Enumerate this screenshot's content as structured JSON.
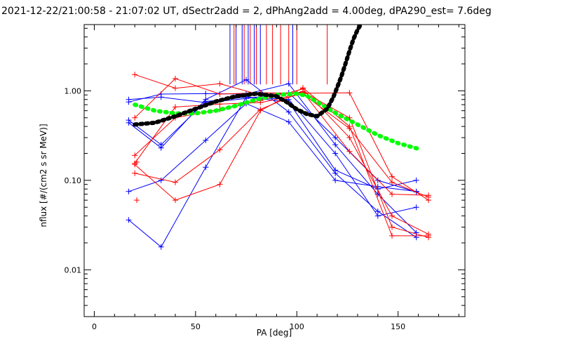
{
  "chart_data": {
    "type": "line",
    "title": "2021-12-22/21:00:58 - 21:07:02 UT, dSectr2add = 2, dPhAng2add = 4.00deg, dPA290_est=   7.6deg",
    "xlabel": "PA [deg]",
    "ylabel": "nflux [#/(cm2 s sr MeV)]",
    "xlim": [
      -5,
      183
    ],
    "ylim": [
      0.003,
      5.5
    ],
    "yscale": "log",
    "x_ticks": [
      0,
      50,
      100,
      150
    ],
    "x_tick_labels": [
      "0",
      "50",
      "100",
      "150"
    ],
    "y_ticks": [
      0.01,
      0.1,
      1.0
    ],
    "y_tick_labels": [
      "0.01",
      "0.10",
      "1.00"
    ],
    "grid": false,
    "colors": {
      "blue": "#0000ff",
      "red": "#ff0000",
      "green": "#00ff00",
      "black": "#000000"
    },
    "series": [
      {
        "color": "blue",
        "x": [
          17,
          33,
          55,
          75,
          96,
          119,
          140,
          159
        ],
        "y": [
          0.036,
          0.018,
          0.14,
          0.85,
          0.75,
          0.13,
          0.08,
          0.1
        ]
      },
      {
        "color": "blue",
        "x": [
          17,
          33,
          55,
          75,
          96,
          119,
          140,
          159
        ],
        "y": [
          0.075,
          0.1,
          0.28,
          0.72,
          0.45,
          0.1,
          0.085,
          0.075
        ]
      },
      {
        "color": "blue",
        "x": [
          17,
          33,
          55,
          75,
          96,
          119,
          140,
          159
        ],
        "y": [
          0.44,
          0.23,
          0.8,
          1.33,
          0.58,
          0.12,
          0.045,
          0.023
        ]
      },
      {
        "color": "blue",
        "x": [
          17,
          33,
          55,
          75,
          96,
          119,
          140,
          159
        ],
        "y": [
          0.47,
          0.25,
          0.76,
          0.85,
          0.8,
          0.2,
          0.04,
          0.05
        ]
      },
      {
        "color": "blue",
        "x": [
          17,
          33,
          55,
          75,
          96,
          119,
          140,
          159
        ],
        "y": [
          0.75,
          0.92,
          0.93,
          0.92,
          1.2,
          0.25,
          0.07,
          0.026
        ]
      },
      {
        "color": "blue",
        "x": [
          17,
          33,
          55,
          75,
          96,
          119,
          140,
          159
        ],
        "y": [
          0.8,
          0.85,
          0.74,
          0.82,
          0.95,
          0.3,
          0.1,
          0.074
        ]
      },
      {
        "color": "red",
        "x": [
          20,
          40,
          62,
          82,
          103,
          126,
          147,
          165
        ],
        "y": [
          0.15,
          0.06,
          0.09,
          0.6,
          1.08,
          0.4,
          0.024,
          0.024
        ]
      },
      {
        "color": "red",
        "x": [
          20,
          40,
          62,
          82,
          103,
          126,
          147,
          165
        ],
        "y": [
          0.12,
          0.095,
          0.22,
          0.62,
          0.98,
          0.5,
          0.03,
          0.023
        ]
      },
      {
        "color": "red",
        "x": [
          20,
          40,
          62,
          82,
          103,
          126,
          147,
          165
        ],
        "y": [
          0.19,
          0.5,
          0.62,
          0.78,
          1.05,
          0.3,
          0.04,
          0.025
        ]
      },
      {
        "color": "red",
        "x": [
          20,
          40,
          62,
          82,
          103,
          126,
          147,
          165
        ],
        "y": [
          0.155,
          0.66,
          0.71,
          0.74,
          0.92,
          0.38,
          0.095,
          0.065
        ]
      },
      {
        "color": "red",
        "x": [
          20,
          40,
          62,
          82,
          103,
          126,
          147,
          165
        ],
        "y": [
          1.52,
          1.07,
          1.2,
          0.9,
          0.97,
          0.21,
          0.07,
          0.068
        ]
      },
      {
        "color": "red",
        "x": [
          20,
          40,
          62,
          82,
          103,
          126,
          147,
          165
        ],
        "y": [
          0.5,
          1.37,
          0.92,
          0.95,
          0.94,
          0.95,
          0.11,
          0.06
        ]
      }
    ],
    "extra_markers": [
      {
        "color": "red",
        "x": 21,
        "y": 0.06
      },
      {
        "color": "red",
        "x": 21,
        "y": 0.16
      }
    ],
    "vertical_lines": [
      {
        "color": "blue",
        "x": [
          67,
          70,
          73,
          76,
          79,
          82,
          98
        ]
      },
      {
        "color": "red",
        "x": [
          69,
          74,
          77,
          80,
          85,
          88,
          92,
          96,
          100,
          115
        ]
      }
    ],
    "vertical_line_bottom": 1.18,
    "fit_curves": [
      {
        "color": "black",
        "style": "dashed",
        "x": [
          20,
          30,
          40,
          50,
          60,
          70,
          80,
          90,
          95,
          100,
          105,
          110,
          115,
          118,
          120,
          122,
          124,
          126,
          128,
          130,
          131.5
        ],
        "y": [
          0.42,
          0.44,
          0.52,
          0.63,
          0.76,
          0.87,
          0.93,
          0.87,
          0.75,
          0.62,
          0.55,
          0.52,
          0.63,
          0.85,
          1.1,
          1.45,
          2.0,
          2.8,
          3.8,
          4.8,
          5.5
        ]
      },
      {
        "color": "green",
        "style": "dotted",
        "x": [
          20,
          30,
          40,
          50,
          60,
          70,
          80,
          90,
          100,
          105,
          110,
          120,
          130,
          140,
          150,
          160
        ],
        "y": [
          0.7,
          0.6,
          0.56,
          0.56,
          0.6,
          0.68,
          0.8,
          0.9,
          0.93,
          0.88,
          0.75,
          0.55,
          0.42,
          0.32,
          0.26,
          0.225
        ]
      }
    ]
  }
}
